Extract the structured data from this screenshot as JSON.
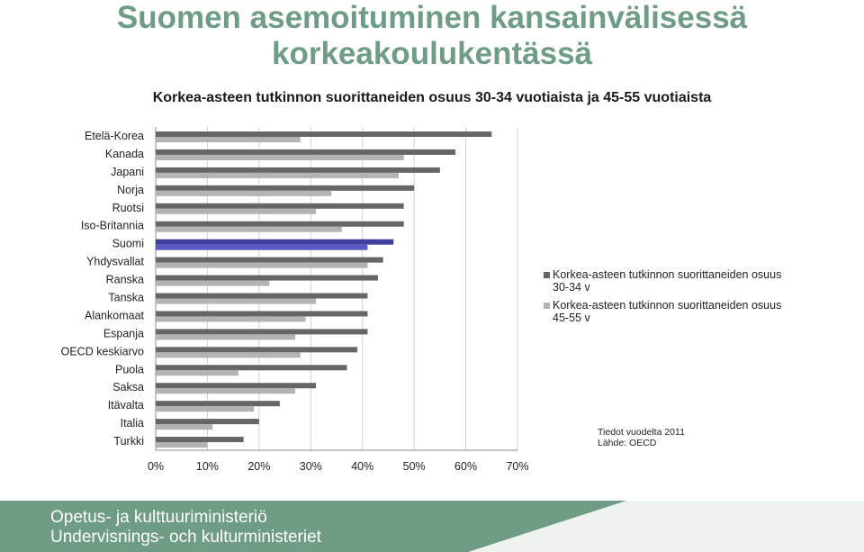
{
  "page": {
    "title_line1": "Suomen asemoituminen kansainvälisessä",
    "title_line2": "korkeakoulukentässä",
    "subtitle": "Korkea-asteen tutkinnon suorittaneiden osuus 30-34 vuotiaista ja 45-55 vuotiaista",
    "note_line1": "Tiedot vuodelta 2011",
    "note_line2": "Lähde: OECD",
    "footer_line1": "Opetus- ja kulttuuriministeriö",
    "footer_line2": "Undervisnings- och kulturministeriet"
  },
  "chart_data": {
    "type": "bar",
    "orientation": "horizontal",
    "categories": [
      "Etelä-Korea",
      "Kanada",
      "Japani",
      "Norja",
      "Ruotsi",
      "Iso-Britannia",
      "Suomi",
      "Yhdysvallat",
      "Ranska",
      "Tanska",
      "Alankomaat",
      "Espanja",
      "OECD keskiarvo",
      "Puola",
      "Saksa",
      "Itävalta",
      "Italia",
      "Turkki"
    ],
    "series": [
      {
        "name": "Korkea-asteen tutkinnon suorittaneiden osuus 30-34 v",
        "color": "#666666",
        "values": [
          65,
          58,
          55,
          50,
          48,
          48,
          46,
          44,
          43,
          41,
          41,
          41,
          39,
          37,
          31,
          24,
          20,
          17
        ]
      },
      {
        "name": "Korkea-asteen tutkinnon suorittaneiden osuus 45-55 v",
        "color": "#b3b3b3",
        "values": [
          28,
          48,
          47,
          34,
          31,
          36,
          41,
          41,
          22,
          31,
          29,
          27,
          28,
          16,
          27,
          19,
          11,
          10
        ]
      }
    ],
    "highlight": {
      "category": "Suomi",
      "color": "#3f3f9f",
      "color_light": "#5959c8"
    },
    "xlim": [
      0,
      70
    ],
    "xticks": [
      "0%",
      "10%",
      "20%",
      "30%",
      "40%",
      "50%",
      "60%",
      "70%"
    ],
    "grid": true,
    "legend_position": "right"
  }
}
